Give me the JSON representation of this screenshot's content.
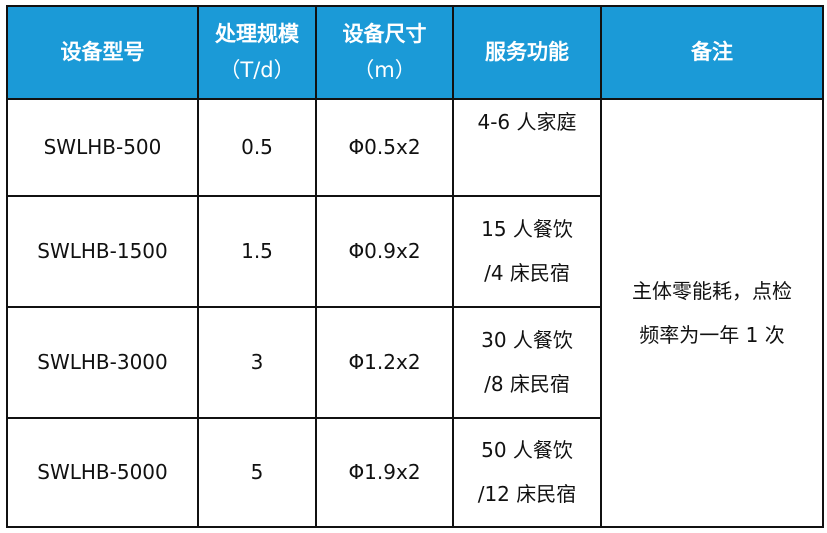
{
  "colors": {
    "header_bg": "#1b9ad7",
    "header_text": "#ffffff",
    "border": "#111111"
  },
  "headers": [
    {
      "line1": "设备型号",
      "line2": ""
    },
    {
      "line1": "处理规模",
      "line2": "（T/d）"
    },
    {
      "line1": "设备尺寸",
      "line2": "（m）"
    },
    {
      "line1": "服务功能",
      "line2": ""
    },
    {
      "line1": "备注",
      "line2": ""
    }
  ],
  "rows": [
    {
      "model": "SWLHB-500",
      "capacity": "0.5",
      "size": "Φ0.5x2",
      "service1": "4-6 人家庭",
      "service2": ""
    },
    {
      "model": "SWLHB-1500",
      "capacity": "1.5",
      "size": "Φ0.9x2",
      "service1": "15 人餐饮",
      "service2": "/4 床民宿"
    },
    {
      "model": "SWLHB-3000",
      "capacity": "3",
      "size": "Φ1.2x2",
      "service1": "30 人餐饮",
      "service2": "/8 床民宿"
    },
    {
      "model": "SWLHB-5000",
      "capacity": "5",
      "size": "Φ1.9x2",
      "service1": "50 人餐饮",
      "service2": "/12 床民宿"
    }
  ],
  "remark": {
    "line1": "主体零能耗，点检",
    "line2": "频率为一年 1 次"
  }
}
